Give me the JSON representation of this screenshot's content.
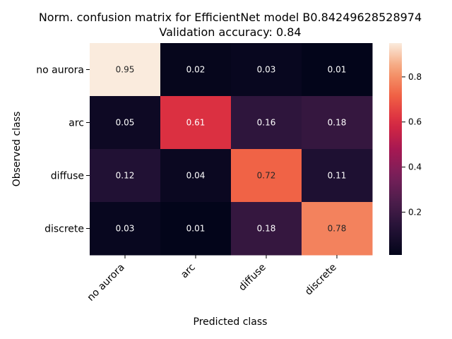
{
  "chart_data": {
    "type": "heatmap",
    "title": "Norm. confusion matrix for EfficientNet model B0.84249628528974",
    "subtitle": "Validation accuracy: 0.84",
    "xlabel": "Predicted class",
    "ylabel": "Observed class",
    "x_categories": [
      "no aurora",
      "arc",
      "diffuse",
      "discrete"
    ],
    "y_categories": [
      "no aurora",
      "arc",
      "diffuse",
      "discrete"
    ],
    "values": [
      [
        0.95,
        0.02,
        0.03,
        0.01
      ],
      [
        0.05,
        0.61,
        0.16,
        0.18
      ],
      [
        0.12,
        0.04,
        0.72,
        0.11
      ],
      [
        0.03,
        0.01,
        0.18,
        0.78
      ]
    ],
    "colormap": "rocket",
    "colorbar": {
      "range": [
        0.01,
        0.95
      ],
      "ticks": [
        0.2,
        0.4,
        0.6,
        0.8
      ]
    },
    "grid": false
  }
}
